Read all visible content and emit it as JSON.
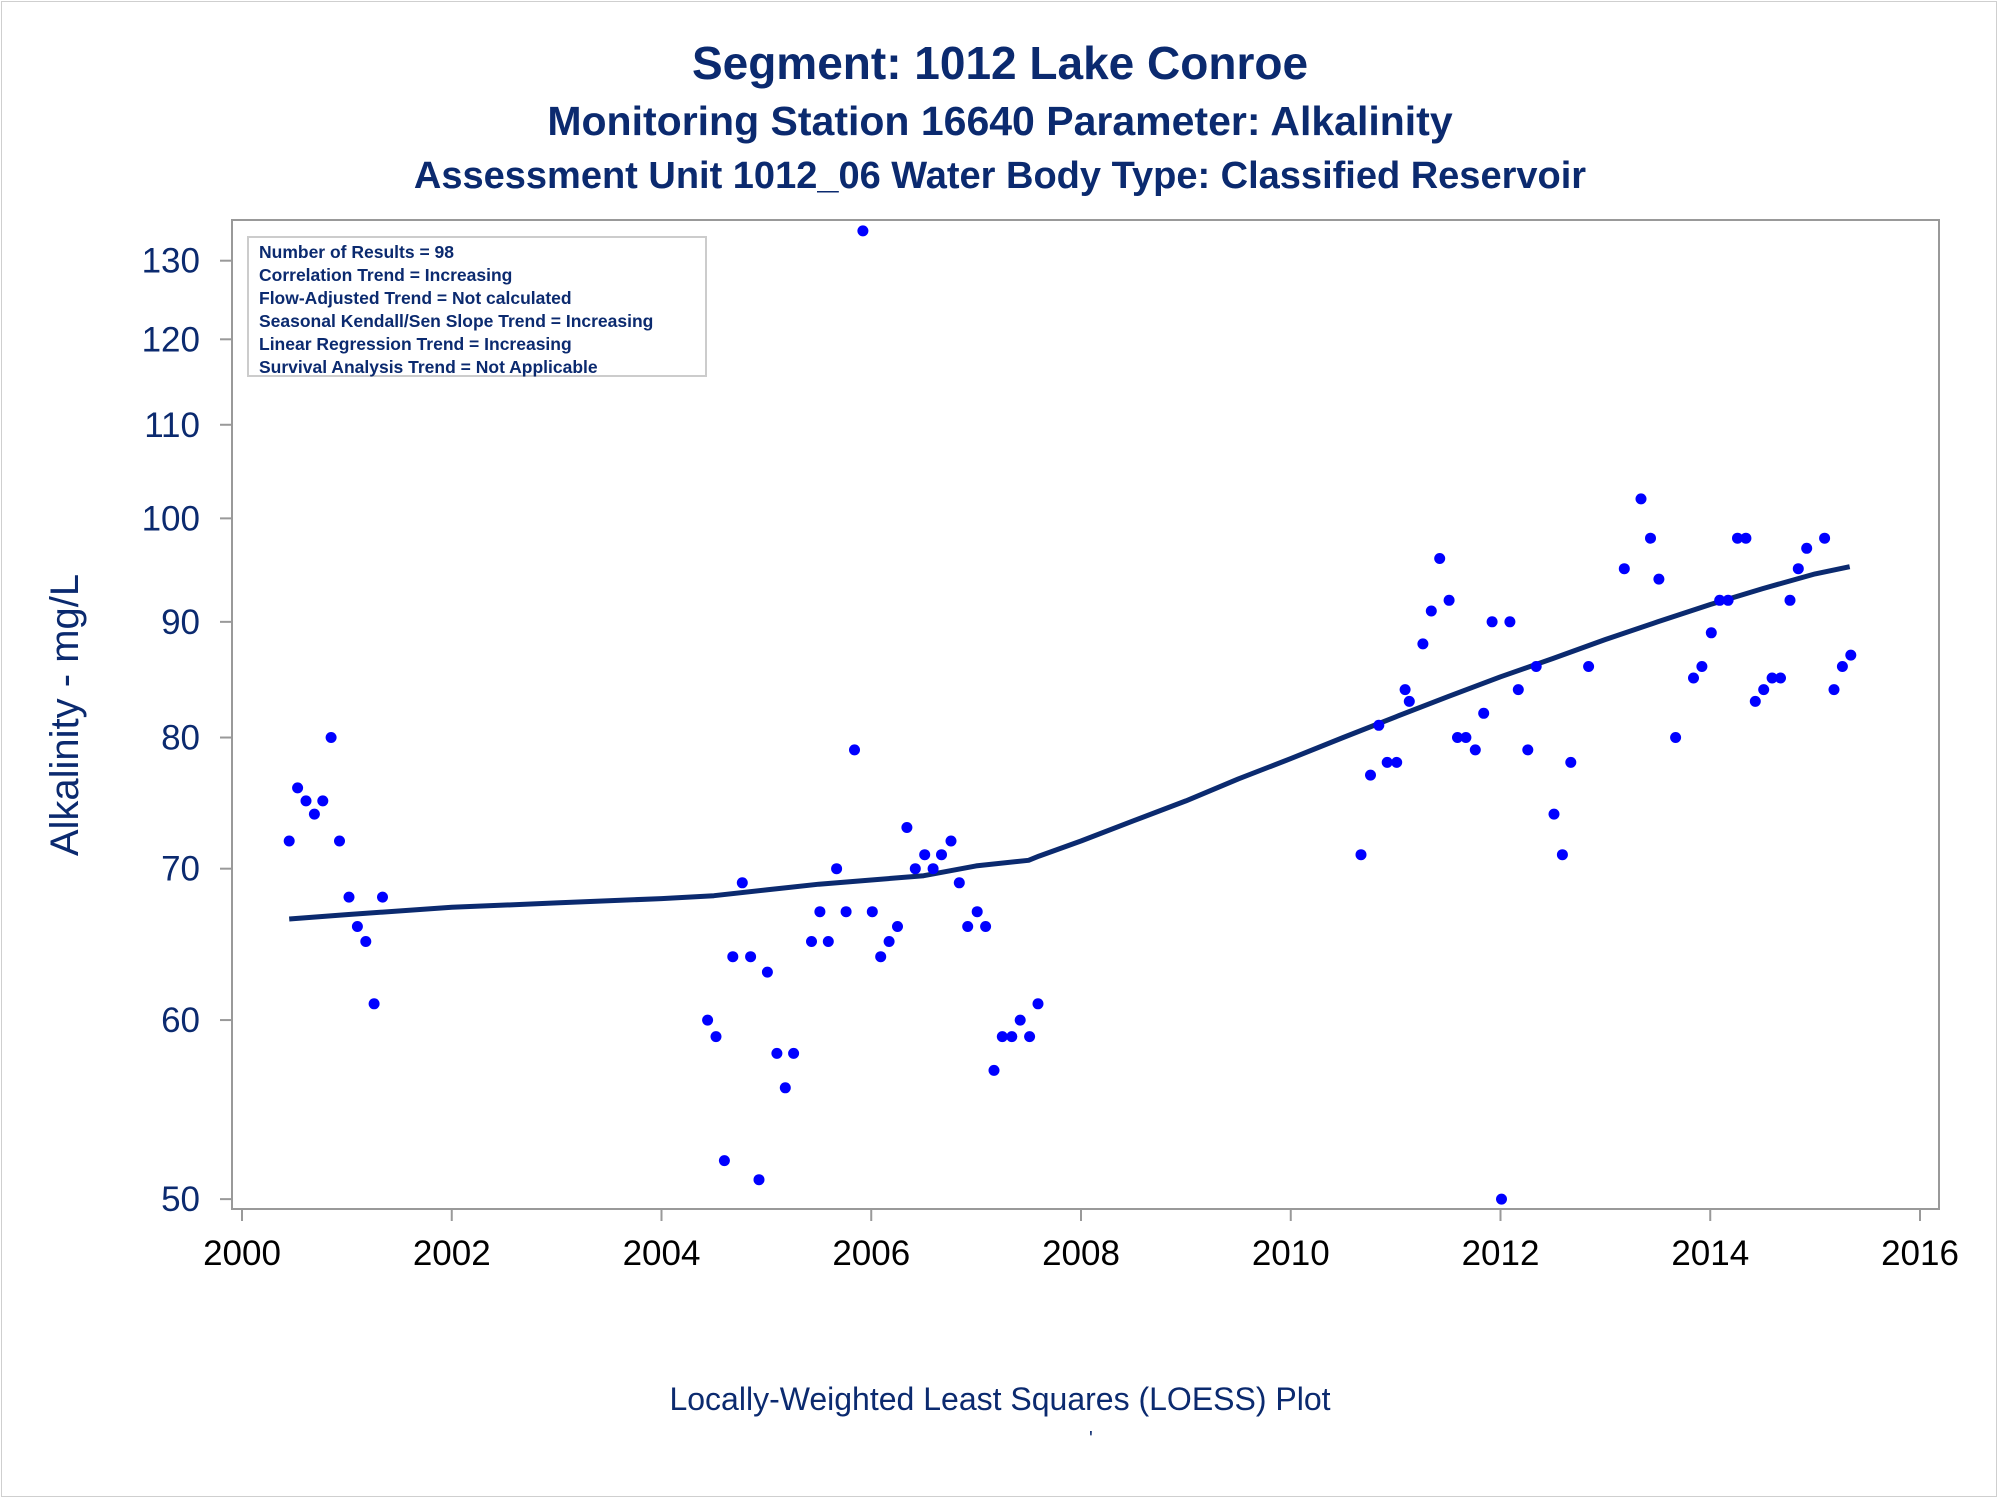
{
  "titles": {
    "line1": "Segment: 1012  Lake Conroe",
    "line2": "Monitoring Station 16640 Parameter: Alkalinity",
    "line3": "Assessment Unit 1012_06   Water Body Type: Classified Reservoir"
  },
  "stats_box": [
    "Number of Results = 98",
    "Correlation Trend = Increasing",
    "Flow-Adjusted Trend = Not calculated",
    "Seasonal Kendall/Sen Slope Trend = Increasing",
    "Linear Regression Trend = Increasing",
    "Survival Analysis Trend = Not Applicable"
  ],
  "footnote": "Locally-Weighted Least Squares (LOESS) Plot",
  "footnote_mark": "'",
  "colors": {
    "text": "#0b2a6f",
    "points": "#0000ff",
    "line": "#0b2a6f",
    "axis": "#999999"
  },
  "chart_data": {
    "type": "scatter",
    "xlabel": "",
    "ylabel": "Alkalinity - mg/L",
    "y_scale": "log",
    "xlim": [
      2000,
      2016
    ],
    "ylim": [
      49.5,
      135.5
    ],
    "x_ticks": [
      2000,
      2002,
      2004,
      2006,
      2008,
      2010,
      2012,
      2014,
      2016
    ],
    "y_ticks": [
      50,
      60,
      70,
      80,
      90,
      100,
      110,
      120,
      130
    ],
    "grid": false,
    "legend": "none",
    "series": [
      {
        "type": "scatter",
        "x": [
          2000.45,
          2000.53,
          2000.61,
          2000.69,
          2000.77,
          2000.85,
          2000.93,
          2001.02,
          2001.1,
          2001.18,
          2001.26,
          2001.34,
          2004.44,
          2004.52,
          2004.6,
          2004.68,
          2004.77,
          2004.85,
          2004.93,
          2005.01,
          2005.1,
          2005.18,
          2005.26,
          2005.43,
          2005.51,
          2005.59,
          2005.67,
          2005.76,
          2005.84,
          2005.92,
          2006.01,
          2006.09,
          2006.17,
          2006.25,
          2006.34,
          2006.42,
          2006.51,
          2006.59,
          2006.67,
          2006.76,
          2006.84,
          2006.92,
          2007.01,
          2007.09,
          2007.17,
          2007.25,
          2007.34,
          2007.42,
          2007.51,
          2007.59,
          2010.67,
          2010.76,
          2010.84,
          2010.92,
          2011.01,
          2011.09,
          2011.13,
          2011.26,
          2011.34,
          2011.42,
          2011.51,
          2011.59,
          2011.67,
          2011.76,
          2011.84,
          2011.92,
          2012.01,
          2012.09,
          2012.17,
          2012.26,
          2012.34,
          2012.51,
          2012.59,
          2012.67,
          2012.84,
          2013.18,
          2013.34,
          2013.43,
          2013.51,
          2013.67,
          2013.84,
          2013.92,
          2014.01,
          2014.09,
          2014.17,
          2014.26,
          2014.34,
          2014.43,
          2014.51,
          2014.59,
          2014.67,
          2014.76,
          2014.84,
          2014.92,
          2015.09,
          2015.18,
          2015.26,
          2015.34
        ],
        "y": [
          72,
          76,
          75,
          74,
          75,
          80,
          72,
          68,
          66,
          65,
          61,
          68,
          60,
          59,
          52,
          64,
          69,
          64,
          51,
          63,
          58,
          56,
          58,
          65,
          67,
          65,
          70,
          67,
          79,
          134,
          67,
          64,
          65,
          66,
          73,
          70,
          71,
          70,
          71,
          72,
          69,
          66,
          67,
          66,
          57,
          59,
          59,
          60,
          59,
          61,
          71,
          77,
          81,
          78,
          78,
          84,
          83,
          88,
          91,
          96,
          92,
          80,
          80,
          79,
          82,
          90,
          50,
          90,
          84,
          79,
          86,
          74,
          71,
          78,
          86,
          95,
          102,
          98,
          94,
          80,
          85,
          86,
          89,
          92,
          92,
          98,
          98,
          83,
          84,
          85,
          85,
          92,
          95,
          97,
          98,
          84,
          86,
          87
        ]
      },
      {
        "type": "line",
        "name": "",
        "x": [
          2000.45,
          2001.0,
          2002.0,
          2003.0,
          2004.0,
          2004.5,
          2005.0,
          2005.5,
          2006.0,
          2006.5,
          2007.0,
          2007.5,
          2007.6,
          2008.0,
          2008.5,
          2009.0,
          2009.5,
          2010.0,
          2010.5,
          2011.0,
          2011.5,
          2012.0,
          2012.5,
          2013.0,
          2013.5,
          2014.0,
          2014.5,
          2015.0,
          2015.33
        ],
        "y": [
          66.5,
          66.8,
          67.3,
          67.6,
          67.9,
          68.1,
          68.5,
          68.9,
          69.2,
          69.5,
          70.2,
          70.6,
          70.9,
          72.0,
          73.5,
          75.0,
          76.7,
          78.3,
          80.0,
          81.7,
          83.4,
          85.1,
          86.7,
          88.4,
          90.0,
          91.6,
          93.1,
          94.5,
          95.2
        ]
      }
    ]
  }
}
